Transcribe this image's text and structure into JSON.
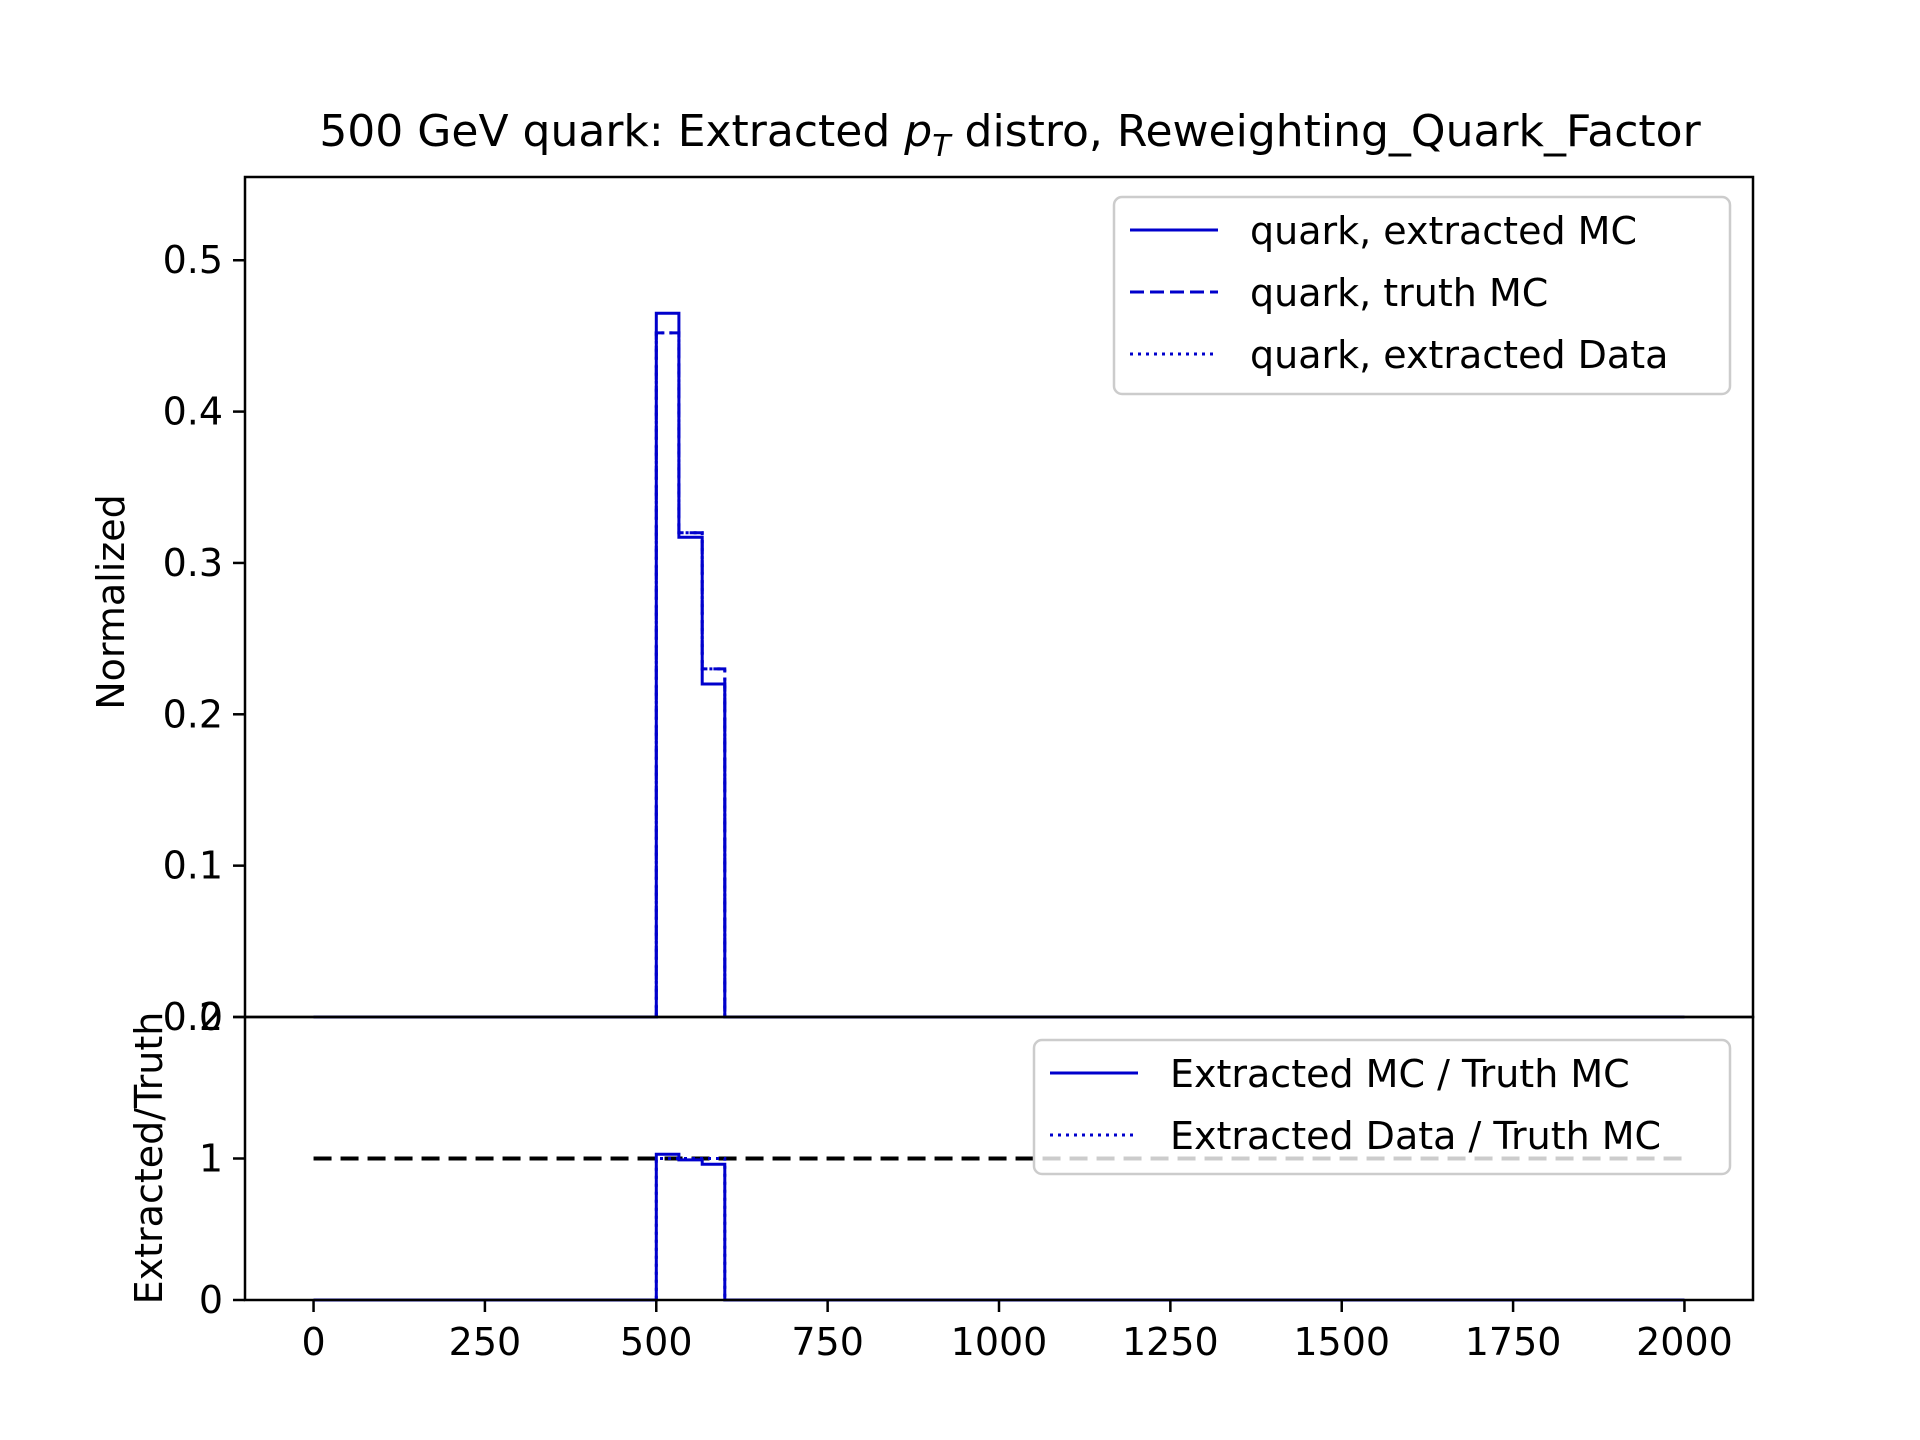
{
  "chart_data": [
    {
      "type": "line",
      "title_prefix": "500 GeV quark: Extracted ",
      "title_var": "p",
      "title_sub": "T",
      "title_suffix": " distro, Reweighting_Quark_Factor",
      "xlabel": "",
      "ylabel": "Normalized",
      "xlim": [
        -100,
        2100
      ],
      "ylim": [
        0,
        0.555
      ],
      "yticks": [
        0.0,
        0.1,
        0.2,
        0.3,
        0.4,
        0.5
      ],
      "ytick_labels": [
        "0.0",
        "0.1",
        "0.2",
        "0.3",
        "0.4",
        "0.5"
      ],
      "legend_position": "upper-right",
      "series": [
        {
          "name": "quark, extracted MC",
          "style": "solid",
          "color": "#0000cc",
          "bin_edges": [
            0,
            500,
            533,
            567,
            600,
            2000
          ],
          "values": [
            0.0,
            0.465,
            0.317,
            0.22,
            0.0
          ]
        },
        {
          "name": "quark, truth MC",
          "style": "dashed",
          "color": "#0000cc",
          "bin_edges": [
            0,
            500,
            533,
            567,
            600,
            2000
          ],
          "values": [
            0.0,
            0.452,
            0.32,
            0.23,
            0.0
          ]
        },
        {
          "name": "quark, extracted Data",
          "style": "dotted",
          "color": "#0000cc",
          "bin_edges": [
            0,
            500,
            533,
            567,
            600,
            2000
          ],
          "values": [
            0.0,
            0.452,
            0.32,
            0.23,
            0.0
          ]
        }
      ]
    },
    {
      "type": "line",
      "xlabel": "",
      "ylabel": "Extracted/Truth",
      "xlim": [
        -100,
        2100
      ],
      "ylim": [
        0,
        2
      ],
      "xticks": [
        0,
        250,
        500,
        750,
        1000,
        1250,
        1500,
        1750,
        2000
      ],
      "xtick_labels": [
        "0",
        "250",
        "500",
        "750",
        "1000",
        "1250",
        "1500",
        "1750",
        "2000"
      ],
      "yticks": [
        0,
        1,
        2
      ],
      "ytick_labels": [
        "0",
        "1",
        "2"
      ],
      "legend_position": "upper-right",
      "reference_line": {
        "y": 1,
        "x_range": [
          0,
          2000
        ],
        "style": "dashed",
        "color": "#000000"
      },
      "series": [
        {
          "name": "Extracted MC / Truth MC",
          "style": "solid",
          "color": "#0000cc",
          "bin_edges": [
            0,
            500,
            533,
            567,
            600,
            2000
          ],
          "values": [
            0.0,
            1.03,
            0.99,
            0.96,
            0.0
          ]
        },
        {
          "name": "Extracted Data / Truth MC",
          "style": "dotted",
          "color": "#0000cc",
          "bin_edges": [
            0,
            500,
            533,
            567,
            600,
            2000
          ],
          "values": [
            0.0,
            1.0,
            1.0,
            1.0,
            0.0
          ]
        }
      ]
    }
  ]
}
